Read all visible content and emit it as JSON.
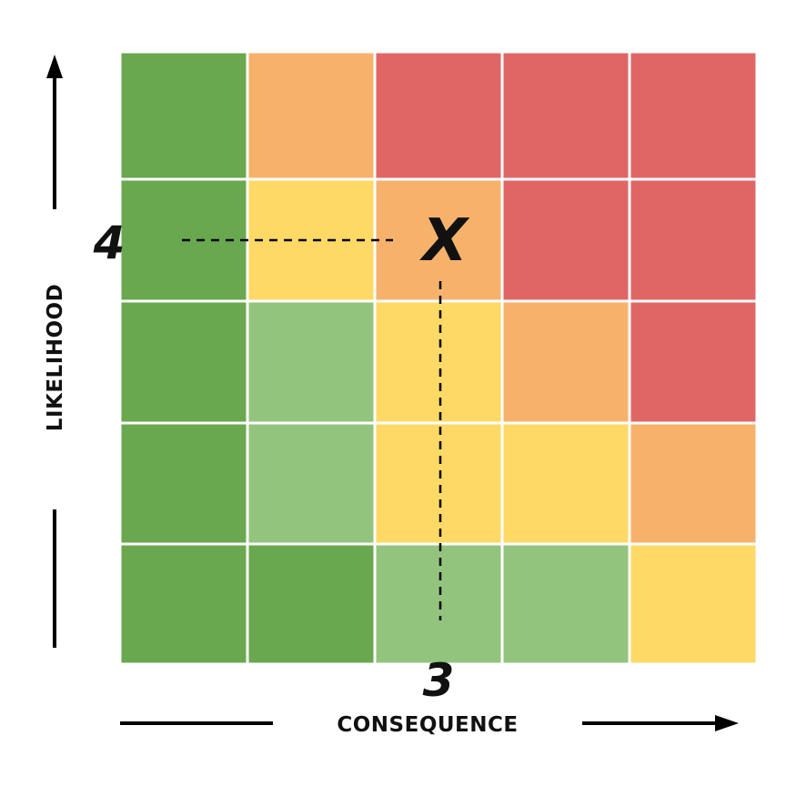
{
  "chart_data": {
    "type": "heatmap",
    "title": "",
    "xlabel": "CONSEQUENCE",
    "ylabel": "LIKELIHOOD",
    "rows_top_to_bottom": [
      [
        "green",
        "orange",
        "red",
        "red",
        "red"
      ],
      [
        "green",
        "yellow",
        "orange",
        "red",
        "red"
      ],
      [
        "green",
        "light-green",
        "yellow",
        "orange",
        "red"
      ],
      [
        "green",
        "light-green",
        "yellow",
        "yellow",
        "orange"
      ],
      [
        "green",
        "green",
        "light-green",
        "light-green",
        "yellow"
      ]
    ],
    "colors": {
      "green": "#6aa84f",
      "light-green": "#93c47d",
      "yellow": "#ffd966",
      "orange": "#f6b26b",
      "red": "#e06666"
    },
    "marker": {
      "label": "X",
      "consequence": 3,
      "likelihood": 4,
      "x_label": "3",
      "y_label": "4"
    }
  }
}
